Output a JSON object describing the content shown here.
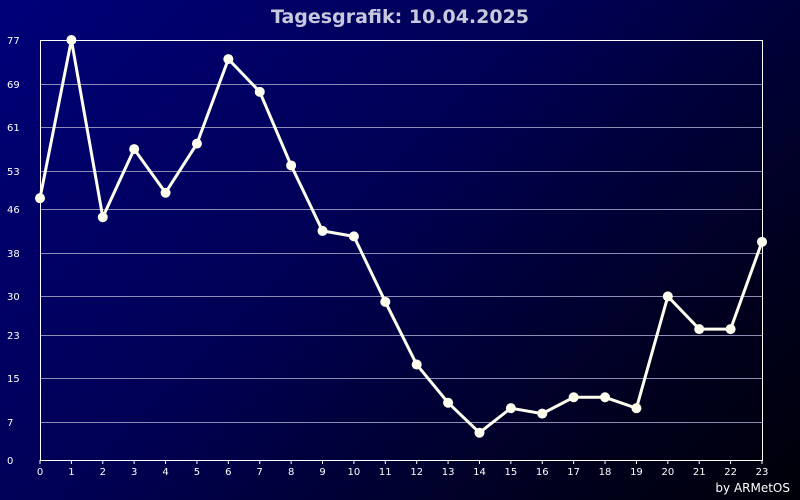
{
  "chart_data": {
    "type": "line",
    "title": "Tagesgrafik: 10.04.2025",
    "x": [
      0,
      1,
      2,
      3,
      4,
      5,
      6,
      7,
      8,
      9,
      10,
      11,
      12,
      13,
      14,
      15,
      16,
      17,
      18,
      19,
      20,
      21,
      22,
      23
    ],
    "y": [
      48,
      77,
      44.5,
      57,
      49,
      58,
      73.5,
      67.5,
      54,
      42,
      41,
      29,
      17.5,
      10.5,
      5,
      9.5,
      8.5,
      11.5,
      11.5,
      9.5,
      30,
      24,
      24,
      40
    ],
    "x_ticks": [
      "0",
      "1",
      "2",
      "3",
      "4",
      "5",
      "6",
      "7",
      "8",
      "9",
      "10",
      "11",
      "12",
      "13",
      "14",
      "15",
      "16",
      "17",
      "18",
      "19",
      "20",
      "21",
      "22",
      "23"
    ],
    "y_ticks": [
      "0",
      "7",
      "15",
      "23",
      "30",
      "38",
      "46",
      "53",
      "61",
      "69",
      "77"
    ],
    "ylim": [
      0,
      77
    ],
    "xlabel": "",
    "ylabel": "",
    "grid": true,
    "colors": {
      "line": "#fffff0",
      "marker": "#fffff0",
      "grid": "#8c8cb4",
      "axis": "#ffffff",
      "tick_text": "#ffffff"
    }
  },
  "footer": {
    "credit": "by ARMetOS"
  }
}
